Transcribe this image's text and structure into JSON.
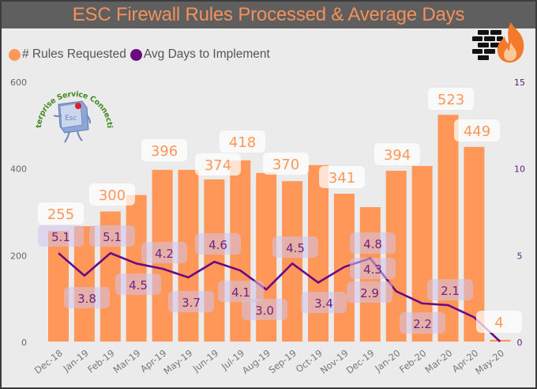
{
  "header": {
    "title": "ESC Firewall Rules Processed & Average Days"
  },
  "logo": {
    "arc_text": "Enterprise Service Connection",
    "key_text": "Esc"
  },
  "icons": {
    "firewall": "firewall-fire-icon",
    "logo": "esc-key-logo"
  },
  "colors": {
    "bars": "#fe9758",
    "line": "#6b0a83",
    "title": "#f4915a",
    "title_bar": "#5f5f5f",
    "background": "#ebebeb",
    "bar_label": "#fe9758",
    "line_label": "#6b2584"
  },
  "chart_data": {
    "type": "bar",
    "combo": "bar+line (dual axis)",
    "title": "ESC Firewall Rules Processed & Average Days",
    "categories": [
      "Dec-18",
      "Jan-19",
      "Feb-19",
      "Mar-19",
      "Apr-19",
      "May-19",
      "Jun-19",
      "Jul-19",
      "Aug-19",
      "Sep-19",
      "Oct-19",
      "Nov-19",
      "Dec-19",
      "Jan-20",
      "Feb-20",
      "Mar-20",
      "Apr-20",
      "May-20"
    ],
    "series": [
      {
        "name": "# Rules Requested",
        "type": "bar",
        "axis": "left",
        "values": [
          255,
          266,
          300,
          338,
          396,
          396,
          374,
          418,
          389,
          370,
          407,
          341,
          310,
          394,
          405,
          523,
          449,
          4
        ],
        "data_labels": [
          "255",
          "",
          "300",
          "",
          "396",
          "",
          "374",
          "418",
          "",
          "370",
          "",
          "341",
          "",
          "394",
          "",
          "523",
          "449",
          "4"
        ]
      },
      {
        "name": "Avg Days to Implement",
        "type": "line",
        "axis": "right",
        "values": [
          5.1,
          3.8,
          5.1,
          4.5,
          4.2,
          3.7,
          4.6,
          4.1,
          3.0,
          4.5,
          3.4,
          4.3,
          4.8,
          2.9,
          2.2,
          2.1,
          1.4,
          0.0
        ],
        "data_labels": [
          "5.1",
          "3.8",
          "5.1",
          "4.5",
          "4.2",
          "3.7",
          "4.6",
          "4.1",
          "3.0",
          "4.5",
          "3.4",
          "4.3",
          "4.8",
          "2.9",
          "2.2",
          "2.1",
          "",
          ""
        ]
      }
    ],
    "y_left": {
      "ylim": [
        0,
        600
      ],
      "ticks": [
        "0",
        "200",
        "400",
        "600"
      ]
    },
    "y_right": {
      "ylim": [
        0,
        15
      ],
      "ticks": [
        "0",
        "5",
        "10",
        "15"
      ]
    },
    "xlabel": "",
    "ylabel": "",
    "grid": false,
    "legend": {
      "position": "top-left",
      "entries": [
        {
          "label": "# Rules Requested",
          "color": "#fe9758"
        },
        {
          "label": "Avg Days to Implement",
          "color": "#6b0a83"
        }
      ]
    }
  }
}
